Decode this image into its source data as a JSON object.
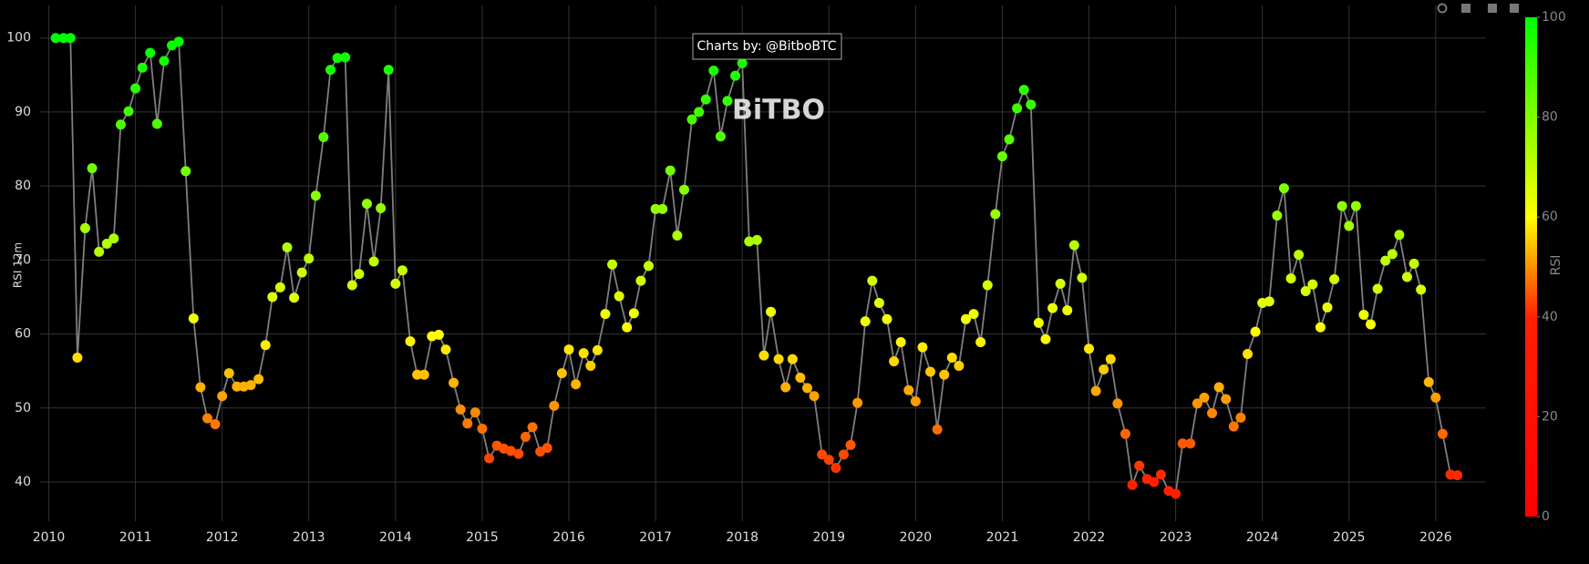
{
  "chart_data": {
    "type": "scatter",
    "mode": "lines+markers",
    "annotation": "Charts by: @BitboBTC",
    "watermark": "BiTBO",
    "y_label": "RSI 12m",
    "x": [
      2010.08,
      2010.17,
      2010.25,
      2010.33,
      2010.42,
      2010.5,
      2010.58,
      2010.67,
      2010.75,
      2010.83,
      2010.92,
      2011.0,
      2011.08,
      2011.17,
      2011.25,
      2011.33,
      2011.42,
      2011.5,
      2011.58,
      2011.67,
      2011.75,
      2011.83,
      2011.92,
      2012.0,
      2012.08,
      2012.17,
      2012.25,
      2012.33,
      2012.42,
      2012.5,
      2012.58,
      2012.67,
      2012.75,
      2012.83,
      2012.92,
      2013.0,
      2013.08,
      2013.17,
      2013.25,
      2013.33,
      2013.42,
      2013.5,
      2013.58,
      2013.67,
      2013.75,
      2013.83,
      2013.92,
      2014.0,
      2014.08,
      2014.17,
      2014.25,
      2014.33,
      2014.42,
      2014.5,
      2014.58,
      2014.67,
      2014.75,
      2014.83,
      2014.92,
      2015.0,
      2015.08,
      2015.17,
      2015.25,
      2015.33,
      2015.42,
      2015.5,
      2015.58,
      2015.67,
      2015.75,
      2015.83,
      2015.92,
      2016.0,
      2016.08,
      2016.17,
      2016.25,
      2016.33,
      2016.42,
      2016.5,
      2016.58,
      2016.67,
      2016.75,
      2016.83,
      2016.92,
      2017.0,
      2017.08,
      2017.17,
      2017.25,
      2017.33,
      2017.42,
      2017.5,
      2017.58,
      2017.67,
      2017.75,
      2017.83,
      2017.92,
      2018.0,
      2018.08,
      2018.17,
      2018.25,
      2018.33,
      2018.42,
      2018.5,
      2018.58,
      2018.67,
      2018.75,
      2018.83,
      2018.92,
      2019.0,
      2019.08,
      2019.17,
      2019.25,
      2019.33,
      2019.42,
      2019.5,
      2019.58,
      2019.67,
      2019.75,
      2019.83,
      2019.92,
      2020.0,
      2020.08,
      2020.17,
      2020.25,
      2020.33,
      2020.42,
      2020.5,
      2020.58,
      2020.67,
      2020.75,
      2020.83,
      2020.92,
      2021.0,
      2021.08,
      2021.17,
      2021.25,
      2021.33,
      2021.42,
      2021.5,
      2021.58,
      2021.67,
      2021.75,
      2021.83,
      2021.92,
      2022.0,
      2022.08,
      2022.17,
      2022.25,
      2022.33,
      2022.42,
      2022.5,
      2022.58,
      2022.67,
      2022.75,
      2022.83,
      2022.92,
      2023.0,
      2023.08,
      2023.17,
      2023.25,
      2023.33,
      2023.42,
      2023.5,
      2023.58,
      2023.67,
      2023.75,
      2023.83,
      2023.92,
      2024.0,
      2024.08,
      2024.17,
      2024.25,
      2024.33,
      2024.42,
      2024.5,
      2024.58,
      2024.67,
      2024.75,
      2024.83,
      2024.92,
      2025.0,
      2025.08,
      2025.17,
      2025.25,
      2025.33,
      2025.42,
      2025.5,
      2025.58,
      2025.67,
      2025.75,
      2025.83,
      2025.92,
      2026.0,
      2026.08,
      2026.17,
      2026.25
    ],
    "values": [
      100,
      100,
      100,
      56.8,
      74.3,
      82.4,
      71.1,
      72.2,
      72.9,
      88.3,
      90.1,
      93.2,
      96,
      98,
      88.4,
      96.9,
      99,
      99.5,
      82,
      62.1,
      52.8,
      48.6,
      47.8,
      51.6,
      54.7,
      52.9,
      52.9,
      53.1,
      53.9,
      58.5,
      65,
      66.3,
      71.7,
      64.9,
      68.3,
      70.2,
      78.7,
      86.6,
      95.7,
      97.3,
      97.4,
      66.6,
      68.1,
      77.6,
      69.8,
      77,
      95.7,
      66.8,
      68.6,
      59,
      54.5,
      54.5,
      59.7,
      59.9,
      57.9,
      53.4,
      49.8,
      47.9,
      49.4,
      47.2,
      43.2,
      44.9,
      44.5,
      44.2,
      43.8,
      46.1,
      47.4,
      44.1,
      44.6,
      50.3,
      54.7,
      57.9,
      53.2,
      57.4,
      55.7,
      57.8,
      62.7,
      69.4,
      65.1,
      60.9,
      62.8,
      67.2,
      69.2,
      76.9,
      76.9,
      82.1,
      73.3,
      79.5,
      89,
      90,
      91.7,
      95.6,
      86.7,
      91.5,
      94.9,
      96.6,
      72.5,
      72.7,
      57.1,
      63,
      56.6,
      52.8,
      56.6,
      54.1,
      52.7,
      51.6,
      43.7,
      43,
      41.9,
      43.7,
      45,
      50.7,
      61.7,
      67.2,
      64.2,
      62,
      56.3,
      58.9,
      52.4,
      50.9,
      58.2,
      54.9,
      47.1,
      54.5,
      56.8,
      55.7,
      62,
      62.7,
      58.9,
      66.6,
      76.2,
      84,
      86.3,
      90.5,
      93,
      91,
      61.5,
      59.3,
      63.5,
      66.8,
      63.2,
      72,
      67.6,
      58,
      52.3,
      55.2,
      56.6,
      50.6,
      46.5,
      39.6,
      42.2,
      40.4,
      40,
      41,
      38.8,
      38.4,
      45.2,
      45.2,
      50.6,
      51.4,
      49.3,
      52.8,
      51.2,
      47.5,
      48.7,
      57.3,
      60.3,
      64.2,
      64.4,
      76,
      79.7,
      67.5,
      70.7,
      65.8,
      66.7,
      60.9,
      63.6,
      67.4,
      77.3,
      74.6,
      77.3,
      62.6,
      61.3,
      66.1,
      69.9,
      70.8,
      73.4,
      67.7,
      69.5,
      66,
      53.5,
      51.4,
      46.5,
      41,
      40.9
    ],
    "line_color": "#7f7f7f",
    "xlim": [
      2009.9,
      2026.58
    ],
    "xticks": [
      2010,
      2011,
      2012,
      2013,
      2014,
      2015,
      2016,
      2017,
      2018,
      2019,
      2020,
      2021,
      2022,
      2023,
      2024,
      2025,
      2026
    ],
    "ylim": [
      34.7,
      104.4
    ],
    "yticks": [
      40,
      50,
      60,
      70,
      80,
      90,
      100
    ],
    "grid": true,
    "colorbar": {
      "title": "RSI",
      "range": [
        0,
        100
      ],
      "ticks": [
        0,
        20,
        40,
        60,
        80,
        100
      ],
      "colorscale": [
        [
          0,
          "#ff0000"
        ],
        [
          0.4,
          "#ff2000"
        ],
        [
          0.6,
          "#ffff00"
        ],
        [
          1,
          "#00ff00"
        ]
      ]
    }
  }
}
